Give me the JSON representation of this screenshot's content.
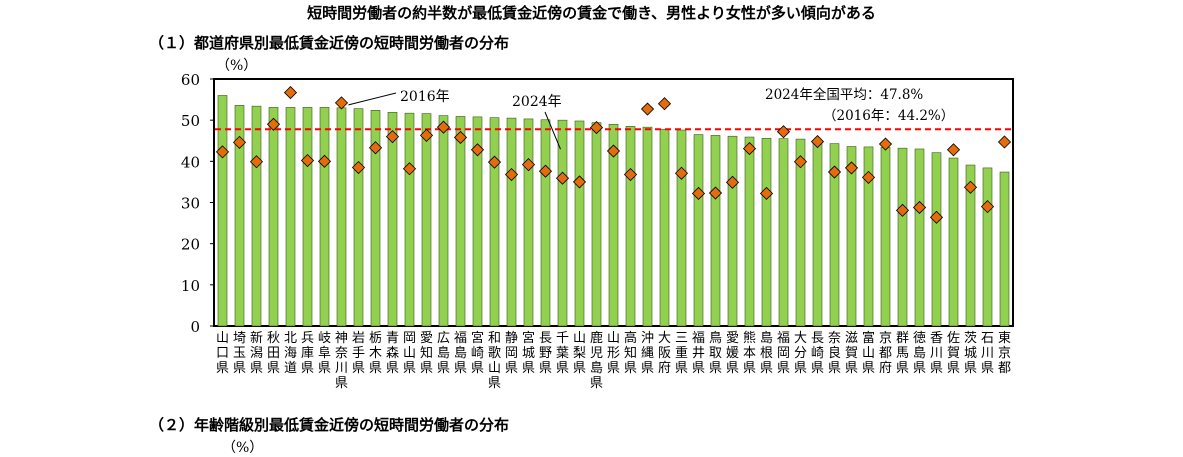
{
  "title": "短時間労働者の約半数が最低賃金近傍の賃金で働き、男性より女性が多い傾向がある",
  "section1_title": "（１）都道府県別最低賃金近傍の短時間労働者の分布",
  "section2_title": "（２）年齢階級別最低賃金近傍の短時間労働者の分布",
  "section2_unit": "（%）",
  "chart_data": {
    "type": "bar",
    "unit_label": "（%）",
    "ylim": [
      0,
      60
    ],
    "yticks": [
      "0",
      "10",
      "20",
      "30",
      "40",
      "50",
      "60"
    ],
    "categories": [
      "山口県",
      "埼玉県",
      "新潟県",
      "秋田県",
      "北海道",
      "兵庫県",
      "岐阜県",
      "神奈川県",
      "岩手県",
      "栃木県",
      "青森県",
      "岡山県",
      "愛知県",
      "広島県",
      "福島県",
      "宮崎県",
      "和歌山県",
      "静岡県",
      "宮城県",
      "長野県",
      "千葉県",
      "山梨県",
      "鹿児島県",
      "山形県",
      "高知県",
      "沖縄県",
      "大阪府",
      "三重県",
      "福井県",
      "鳥取県",
      "愛媛県",
      "熊本県",
      "島根県",
      "福岡県",
      "大分県",
      "長崎県",
      "奈良県",
      "滋賀県",
      "富山県",
      "京都府",
      "群馬県",
      "徳島県",
      "香川県",
      "佐賀県",
      "茨城県",
      "石川県",
      "東京都"
    ],
    "series": [
      {
        "name": "2024年",
        "type": "bar",
        "color": "#92d050",
        "values": [
          56.0,
          53.6,
          53.4,
          53.1,
          53.1,
          53.1,
          53.1,
          53.0,
          52.8,
          52.4,
          51.9,
          51.7,
          51.6,
          51.1,
          50.9,
          50.8,
          50.6,
          50.5,
          50.3,
          50.1,
          50.0,
          49.8,
          49.4,
          49.0,
          48.5,
          48.3,
          47.8,
          47.6,
          46.5,
          46.3,
          46.1,
          45.9,
          45.6,
          45.5,
          45.4,
          44.9,
          44.3,
          43.6,
          43.5,
          43.4,
          43.2,
          43.0,
          42.1,
          40.8,
          39.1,
          38.4,
          37.4
        ]
      },
      {
        "name": "2016年",
        "type": "scatter",
        "marker": "diamond",
        "color": "#e46c0a",
        "values": [
          42.3,
          44.6,
          39.9,
          49.0,
          56.7,
          40.2,
          40.0,
          54.2,
          38.5,
          43.3,
          46.0,
          38.2,
          46.3,
          48.3,
          45.8,
          42.8,
          39.8,
          36.8,
          39.2,
          37.6,
          35.9,
          35.0,
          48.2,
          42.5,
          36.8,
          52.7,
          54.0,
          37.1,
          32.2,
          32.3,
          34.9,
          43.1,
          32.2,
          47.2,
          39.9,
          44.8,
          37.4,
          38.4,
          36.1,
          44.2,
          28.1,
          28.8,
          26.4,
          42.8,
          33.7,
          29.0,
          44.7
        ]
      }
    ],
    "reference_line": {
      "value": 47.8,
      "color": "#ff0000",
      "style": "dashed"
    },
    "annotations": [
      {
        "text": "2016年",
        "target": "神奈川県"
      },
      {
        "text": "2024年",
        "target": "千葉県"
      },
      {
        "text": "2024年全国平均：47.8%",
        "position": "top-right"
      },
      {
        "text": "（2016年：44.2%）",
        "position": "top-right"
      }
    ],
    "grid": false,
    "legend": "none"
  }
}
